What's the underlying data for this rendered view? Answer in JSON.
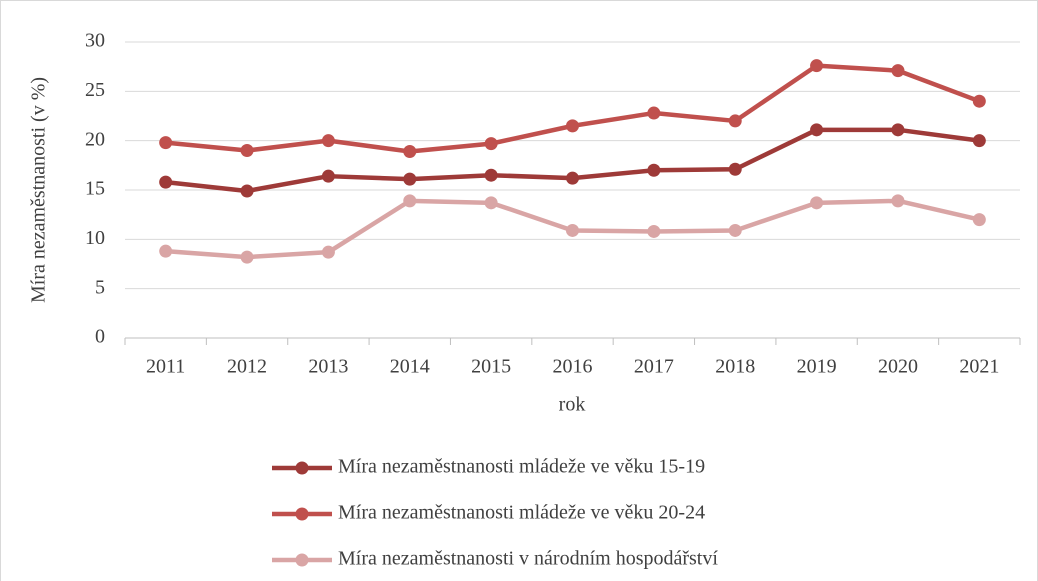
{
  "chart_data": {
    "type": "line",
    "x_label": "rok",
    "y_label": "Míra nezaměstnanosti (v %)",
    "categories": [
      "2011",
      "2012",
      "2013",
      "2014",
      "2015",
      "2016",
      "2017",
      "2018",
      "2019",
      "2020",
      "2021"
    ],
    "series": [
      {
        "name": "Míra nezaměstnanosti mládeže ve věku 15-19",
        "color": "#9e3a38",
        "values": [
          15.8,
          14.9,
          16.4,
          16.1,
          16.5,
          16.2,
          17.0,
          17.1,
          21.1,
          21.1,
          20.0
        ]
      },
      {
        "name": "Míra nezaměstnanosti mládeže ve věku 20-24",
        "color": "#c0504d",
        "values": [
          19.8,
          19.0,
          20.0,
          18.9,
          19.7,
          21.5,
          22.8,
          22.0,
          27.6,
          27.1,
          24.0
        ]
      },
      {
        "name": "Míra nezaměstnanosti v národním hospodářství",
        "color": "#d9a5a5",
        "values": [
          8.8,
          8.2,
          8.7,
          13.9,
          13.7,
          10.9,
          10.8,
          10.9,
          13.7,
          13.9,
          12.0
        ]
      }
    ],
    "ylim": [
      0,
      30
    ],
    "yticks": [
      0,
      5,
      10,
      15,
      20,
      25,
      30
    ],
    "grid": true,
    "legend": "bottom"
  }
}
